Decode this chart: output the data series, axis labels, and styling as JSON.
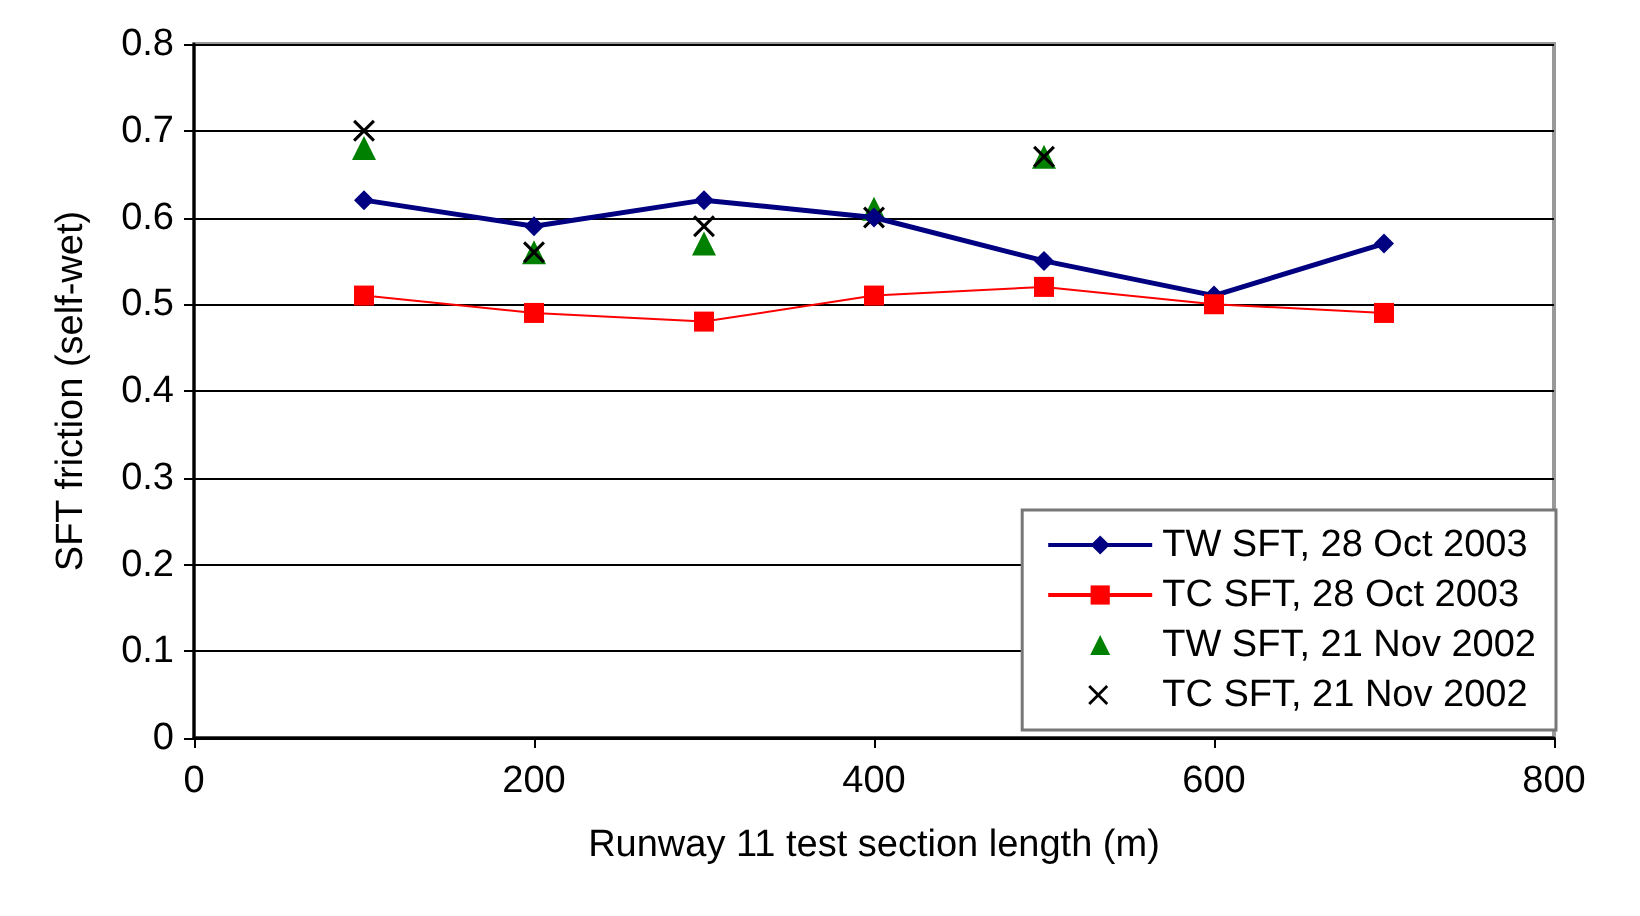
{
  "chart_data": {
    "type": "line",
    "xlabel": "Runway 11 test section length (m)",
    "ylabel": "SFT friction (self-wet)",
    "xlim": [
      0,
      800
    ],
    "xticks": [
      0,
      200,
      400,
      600,
      800
    ],
    "ylim": [
      0,
      0.8
    ],
    "yticks": [
      0,
      0.1,
      0.2,
      0.3,
      0.4,
      0.5,
      0.6,
      0.7,
      0.8
    ],
    "grid": "y",
    "legend": "bottom right",
    "series": [
      {
        "name": "TW SFT, 28 Oct 2003",
        "marker": "diamond",
        "color": "#000080",
        "x": [
          100,
          200,
          300,
          400,
          500,
          600,
          700
        ],
        "values": [
          0.62,
          0.59,
          0.62,
          0.6,
          0.55,
          0.51,
          0.57
        ]
      },
      {
        "name": "TC SFT, 28 Oct 2003",
        "marker": "square",
        "color": "#ff0000",
        "x": [
          100,
          200,
          300,
          400,
          500,
          600,
          700
        ],
        "values": [
          0.51,
          0.49,
          0.48,
          0.51,
          0.52,
          0.5,
          0.49
        ]
      },
      {
        "name": "TW SFT, 21 Nov 2002",
        "type": "scatter",
        "marker": "triangle",
        "color": "#008000",
        "x": [
          100,
          200,
          300,
          400,
          500
        ],
        "values": [
          0.68,
          0.56,
          0.57,
          0.61,
          0.67
        ]
      },
      {
        "name": "TC SFT, 21 Nov 2002",
        "type": "scatter",
        "marker": "cross",
        "color": "#000000",
        "x": [
          100,
          200,
          300,
          400,
          500
        ],
        "values": [
          0.7,
          0.56,
          0.59,
          0.6,
          0.67
        ]
      }
    ]
  }
}
